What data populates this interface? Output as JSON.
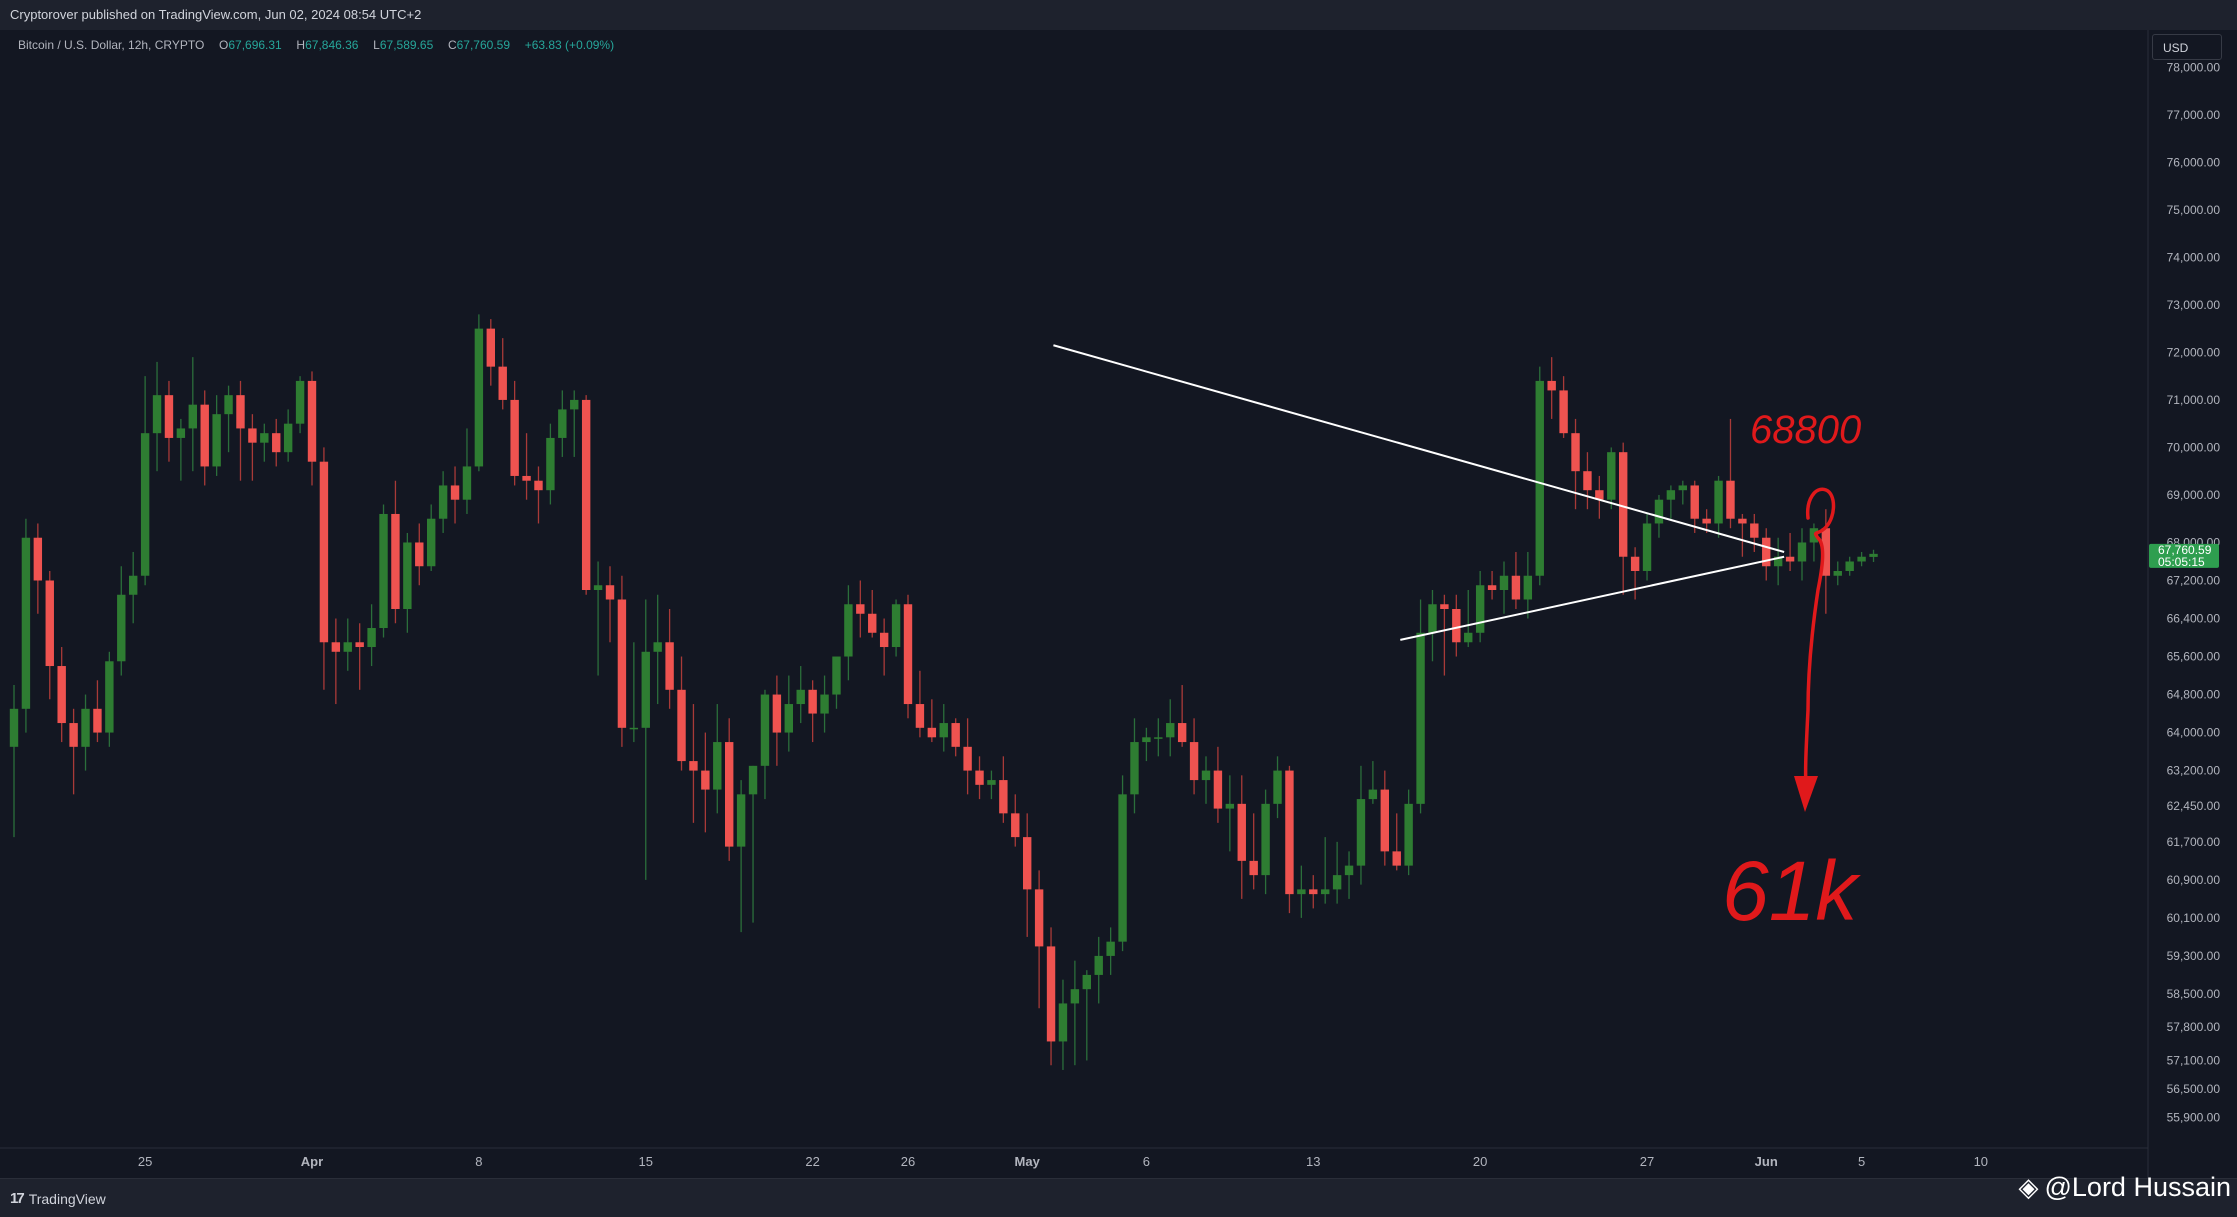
{
  "header": {
    "publisher_line": "Cryptorover published on TradingView.com, Jun 02, 2024 08:54 UTC+2"
  },
  "legend": {
    "symbol": "Bitcoin / U.S. Dollar, 12h, CRYPTO",
    "o_label": "O",
    "o_value": "67,696.31",
    "h_label": "H",
    "h_value": "67,846.36",
    "l_label": "L",
    "l_value": "67,589.65",
    "c_label": "C",
    "c_value": "67,760.59",
    "change": "+63.83 (+0.09%)"
  },
  "currency": "USD",
  "footer": {
    "brand": "TradingView",
    "brand_icon": "tradingview-logo-icon",
    "watermark": "@Lord Hussain",
    "watermark_icon": "binance-logo-icon"
  },
  "colors": {
    "background": "#131722",
    "up": "#26a69a",
    "up_body": "#2e7d32",
    "down": "#ef5350",
    "annotation": "#e0191b",
    "trendline": "#ffffff",
    "last_price_bg": "#2e9e4f"
  },
  "chart_data": {
    "type": "candlestick",
    "title": "Bitcoin / U.S. Dollar, 12h, CRYPTO",
    "ylim": [
      55300,
      78700
    ],
    "yticks": [
      "78,000.00",
      "77,000.00",
      "76,000.00",
      "75,000.00",
      "74,000.00",
      "73,000.00",
      "72,000.00",
      "71,000.00",
      "70,000.00",
      "69,000.00",
      "68,000.00",
      "67,200.00",
      "66,400.00",
      "65,600.00",
      "64,800.00",
      "64,000.00",
      "63,200.00",
      "62,450.00",
      "61,700.00",
      "60,900.00",
      "60,100.00",
      "59,300.00",
      "58,500.00",
      "57,800.00",
      "57,100.00",
      "56,500.00",
      "55,900.00"
    ],
    "xticks": [
      {
        "label": "25",
        "bar": 11
      },
      {
        "label": "Apr",
        "bar": 25
      },
      {
        "label": "8",
        "bar": 39
      },
      {
        "label": "15",
        "bar": 53
      },
      {
        "label": "22",
        "bar": 67
      },
      {
        "label": "26",
        "bar": 75
      },
      {
        "label": "May",
        "bar": 85
      },
      {
        "label": "6",
        "bar": 95
      },
      {
        "label": "13",
        "bar": 109
      },
      {
        "label": "20",
        "bar": 123
      },
      {
        "label": "27",
        "bar": 137
      },
      {
        "label": "Jun",
        "bar": 147
      },
      {
        "label": "5",
        "bar": 155
      },
      {
        "label": "10",
        "bar": 165
      }
    ],
    "last_price": {
      "value": 67760.59,
      "label": "67,760.59",
      "countdown": "05:05:15"
    },
    "candles": [
      [
        63700,
        65000,
        61800,
        64500
      ],
      [
        64500,
        68500,
        64000,
        68100
      ],
      [
        68100,
        68400,
        66500,
        67200
      ],
      [
        67200,
        67400,
        64700,
        65400
      ],
      [
        65400,
        65800,
        63800,
        64200
      ],
      [
        64200,
        64500,
        62700,
        63700
      ],
      [
        63700,
        64800,
        63200,
        64500
      ],
      [
        64500,
        65100,
        63800,
        64000
      ],
      [
        64000,
        65700,
        63700,
        65500
      ],
      [
        65500,
        67500,
        65200,
        66900
      ],
      [
        66900,
        67800,
        66300,
        67300
      ],
      [
        67300,
        71500,
        67100,
        70300
      ],
      [
        70300,
        71800,
        69500,
        71100
      ],
      [
        71100,
        71400,
        69700,
        70200
      ],
      [
        70200,
        70600,
        69300,
        70400
      ],
      [
        70400,
        71900,
        69500,
        70900
      ],
      [
        70900,
        71200,
        69200,
        69600
      ],
      [
        69600,
        71100,
        69400,
        70700
      ],
      [
        70700,
        71300,
        69900,
        71100
      ],
      [
        71100,
        71400,
        69300,
        70400
      ],
      [
        70400,
        70700,
        69300,
        70100
      ],
      [
        70100,
        70500,
        69700,
        70300
      ],
      [
        70300,
        70600,
        69600,
        69900
      ],
      [
        69900,
        70800,
        69700,
        70500
      ],
      [
        70500,
        71500,
        70300,
        71400
      ],
      [
        71400,
        71600,
        69200,
        69700
      ],
      [
        69700,
        70000,
        64900,
        65900
      ],
      [
        65900,
        66400,
        64600,
        65700
      ],
      [
        65700,
        66400,
        65300,
        65900
      ],
      [
        65900,
        66300,
        64900,
        65800
      ],
      [
        65800,
        66700,
        65400,
        66200
      ],
      [
        66200,
        68800,
        66000,
        68600
      ],
      [
        68600,
        69300,
        66300,
        66600
      ],
      [
        66600,
        68200,
        66100,
        68000
      ],
      [
        68000,
        68400,
        67100,
        67500
      ],
      [
        67500,
        68800,
        67400,
        68500
      ],
      [
        68500,
        69500,
        68200,
        69200
      ],
      [
        69200,
        69600,
        68400,
        68900
      ],
      [
        68900,
        70400,
        68600,
        69600
      ],
      [
        69600,
        72800,
        69500,
        72500
      ],
      [
        72500,
        72700,
        71300,
        71700
      ],
      [
        71700,
        72300,
        70800,
        71000
      ],
      [
        71000,
        71400,
        69200,
        69400
      ],
      [
        69400,
        70300,
        68900,
        69300
      ],
      [
        69300,
        69600,
        68400,
        69100
      ],
      [
        69100,
        70500,
        68800,
        70200
      ],
      [
        70200,
        71200,
        69800,
        70800
      ],
      [
        70800,
        71200,
        69800,
        71000
      ],
      [
        71000,
        71100,
        66900,
        67000
      ],
      [
        67000,
        67600,
        65200,
        67100
      ],
      [
        67100,
        67500,
        65900,
        66800
      ],
      [
        66800,
        67300,
        63700,
        64100
      ],
      [
        64100,
        65900,
        63800,
        64100
      ],
      [
        64100,
        66800,
        60900,
        65700
      ],
      [
        65700,
        66900,
        64600,
        65900
      ],
      [
        65900,
        66600,
        64500,
        64900
      ],
      [
        64900,
        65600,
        63200,
        63400
      ],
      [
        63400,
        64600,
        62100,
        63200
      ],
      [
        63200,
        64000,
        61900,
        62800
      ],
      [
        62800,
        64600,
        62300,
        63800
      ],
      [
        63800,
        64300,
        61300,
        61600
      ],
      [
        61600,
        63000,
        59800,
        62700
      ],
      [
        62700,
        63300,
        60000,
        63300
      ],
      [
        63300,
        64900,
        62600,
        64800
      ],
      [
        64800,
        65200,
        63300,
        64000
      ],
      [
        64000,
        65200,
        63600,
        64600
      ],
      [
        64600,
        65400,
        64200,
        64900
      ],
      [
        64900,
        65100,
        63800,
        64400
      ],
      [
        64400,
        65200,
        64000,
        64800
      ],
      [
        64800,
        65500,
        64500,
        65600
      ],
      [
        65600,
        67100,
        65100,
        66700
      ],
      [
        66700,
        67200,
        66000,
        66500
      ],
      [
        66500,
        67000,
        66000,
        66100
      ],
      [
        66100,
        66400,
        65200,
        65800
      ],
      [
        65800,
        66800,
        65600,
        66700
      ],
      [
        66700,
        66900,
        64300,
        64600
      ],
      [
        64600,
        65300,
        63900,
        64100
      ],
      [
        64100,
        64700,
        63800,
        63900
      ],
      [
        63900,
        64600,
        63600,
        64200
      ],
      [
        64200,
        64300,
        63500,
        63700
      ],
      [
        63700,
        64300,
        62700,
        63200
      ],
      [
        63200,
        63500,
        62600,
        62900
      ],
      [
        62900,
        63200,
        62600,
        63000
      ],
      [
        63000,
        63500,
        62100,
        62300
      ],
      [
        62300,
        62700,
        61600,
        61800
      ],
      [
        61800,
        62300,
        59700,
        60700
      ],
      [
        60700,
        61100,
        58200,
        59500
      ],
      [
        59500,
        59900,
        57000,
        57500
      ],
      [
        57500,
        58800,
        56900,
        58300
      ],
      [
        58300,
        59200,
        57000,
        58600
      ],
      [
        58600,
        59000,
        57100,
        58900
      ],
      [
        58900,
        59700,
        58300,
        59300
      ],
      [
        59300,
        59900,
        58900,
        59600
      ],
      [
        59600,
        63100,
        59400,
        62700
      ],
      [
        62700,
        64300,
        62300,
        63800
      ],
      [
        63800,
        64100,
        63400,
        63900
      ],
      [
        63900,
        64300,
        63500,
        63900
      ],
      [
        63900,
        64700,
        63500,
        64200
      ],
      [
        64200,
        65000,
        63700,
        63800
      ],
      [
        63800,
        64300,
        62700,
        63000
      ],
      [
        63000,
        63500,
        62500,
        63200
      ],
      [
        63200,
        63700,
        62100,
        62400
      ],
      [
        62400,
        63100,
        61500,
        62500
      ],
      [
        62500,
        63100,
        60500,
        61300
      ],
      [
        61300,
        62300,
        60700,
        61000
      ],
      [
        61000,
        62800,
        60600,
        62500
      ],
      [
        62500,
        63500,
        62200,
        63200
      ],
      [
        63200,
        63300,
        60200,
        60600
      ],
      [
        60600,
        61200,
        60100,
        60700
      ],
      [
        60700,
        61000,
        60300,
        60600
      ],
      [
        60600,
        61800,
        60400,
        60700
      ],
      [
        60700,
        61700,
        60400,
        61000
      ],
      [
        61000,
        61500,
        60500,
        61200
      ],
      [
        61200,
        63300,
        60800,
        62600
      ],
      [
        62600,
        63400,
        62500,
        62800
      ],
      [
        62800,
        63200,
        61200,
        61500
      ],
      [
        61500,
        62300,
        61100,
        61200
      ],
      [
        61200,
        62800,
        61000,
        62500
      ],
      [
        62500,
        66800,
        62300,
        66100
      ],
      [
        66100,
        67000,
        65500,
        66700
      ],
      [
        66700,
        66900,
        65200,
        66600
      ],
      [
        66600,
        66900,
        65600,
        65900
      ],
      [
        65900,
        67000,
        65800,
        66100
      ],
      [
        66100,
        67400,
        65900,
        67100
      ],
      [
        67100,
        67400,
        66800,
        67000
      ],
      [
        67000,
        67600,
        66500,
        67300
      ],
      [
        67300,
        67800,
        66600,
        66800
      ],
      [
        66800,
        67800,
        66400,
        67300
      ],
      [
        67300,
        71700,
        67100,
        71400
      ],
      [
        71400,
        71900,
        70600,
        71200
      ],
      [
        71200,
        71500,
        70200,
        70300
      ],
      [
        70300,
        70600,
        68700,
        69500
      ],
      [
        69500,
        69900,
        68700,
        69100
      ],
      [
        69100,
        69400,
        68500,
        68900
      ],
      [
        68900,
        70000,
        68700,
        69900
      ],
      [
        69900,
        70100,
        66900,
        67700
      ],
      [
        67700,
        67900,
        66800,
        67400
      ],
      [
        67400,
        68600,
        67200,
        68400
      ],
      [
        68400,
        69000,
        68100,
        68900
      ],
      [
        68900,
        69200,
        68500,
        69100
      ],
      [
        69100,
        69300,
        68800,
        69200
      ],
      [
        69200,
        69300,
        68200,
        68500
      ],
      [
        68500,
        68700,
        68200,
        68400
      ],
      [
        68400,
        69400,
        68100,
        69300
      ],
      [
        69300,
        70600,
        68300,
        68500
      ],
      [
        68500,
        68600,
        67700,
        68400
      ],
      [
        68400,
        68600,
        67800,
        68100
      ],
      [
        68100,
        68300,
        67200,
        67500
      ],
      [
        67500,
        68100,
        67100,
        67700
      ],
      [
        67700,
        68200,
        67400,
        67600
      ],
      [
        67600,
        68300,
        67200,
        68000
      ],
      [
        68000,
        68400,
        67600,
        68300
      ],
      [
        68300,
        68700,
        66500,
        67300
      ],
      [
        67300,
        67600,
        67100,
        67400
      ],
      [
        67400,
        67700,
        67300,
        67600
      ],
      [
        67600,
        67800,
        67500,
        67700
      ],
      [
        67696.31,
        67846.36,
        67589.65,
        67760.59
      ]
    ],
    "annotations": {
      "target_high": "68800",
      "target_low": "61k"
    }
  }
}
